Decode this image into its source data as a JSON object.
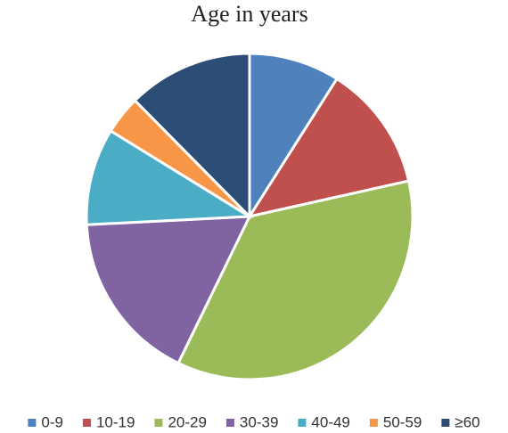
{
  "chart_data": {
    "type": "pie",
    "title": "Age in years",
    "categories": [
      "0-9",
      "10-19",
      "20-29",
      "30-39",
      "40-49",
      "50-59",
      "≥60"
    ],
    "values": [
      9,
      12.5,
      35.7,
      17,
      9.6,
      3.8,
      12.4
    ],
    "colors": [
      "#4f81bd",
      "#c0504d",
      "#9bbb59",
      "#8064a2",
      "#4bacc6",
      "#f79646",
      "#2c4d75"
    ],
    "legend": "bottom"
  }
}
